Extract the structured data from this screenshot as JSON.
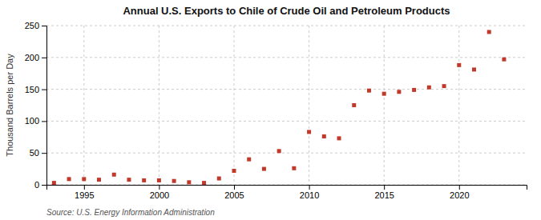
{
  "chart_data": {
    "type": "scatter",
    "title": "Annual U.S. Exports to Chile of Crude Oil and Petroleum Products",
    "y_label": "Thousand Barrels per Day",
    "source": "Source: U.S. Energy Information Administration",
    "x": [
      1993,
      1994,
      1995,
      1996,
      1997,
      1998,
      1999,
      2000,
      2001,
      2002,
      2003,
      2004,
      2005,
      2006,
      2007,
      2008,
      2009,
      2010,
      2011,
      2012,
      2013,
      2014,
      2015,
      2016,
      2017,
      2018,
      2019,
      2020,
      2021,
      2022,
      2023
    ],
    "values": [
      3,
      9,
      9,
      8,
      16,
      8,
      7,
      7,
      6,
      4,
      3,
      10,
      22,
      40,
      25,
      53,
      26,
      83,
      76,
      73,
      125,
      148,
      143,
      146,
      149,
      153,
      155,
      188,
      181,
      240,
      197
    ],
    "color": "#c0392b",
    "marker": "square",
    "xlim": [
      1992.5,
      2024.5
    ],
    "xticks": [
      1995,
      2000,
      2005,
      2010,
      2015,
      2020
    ],
    "ylim": [
      0,
      250
    ],
    "yticks": [
      0,
      50,
      100,
      150,
      200,
      250
    ],
    "grid": true
  }
}
